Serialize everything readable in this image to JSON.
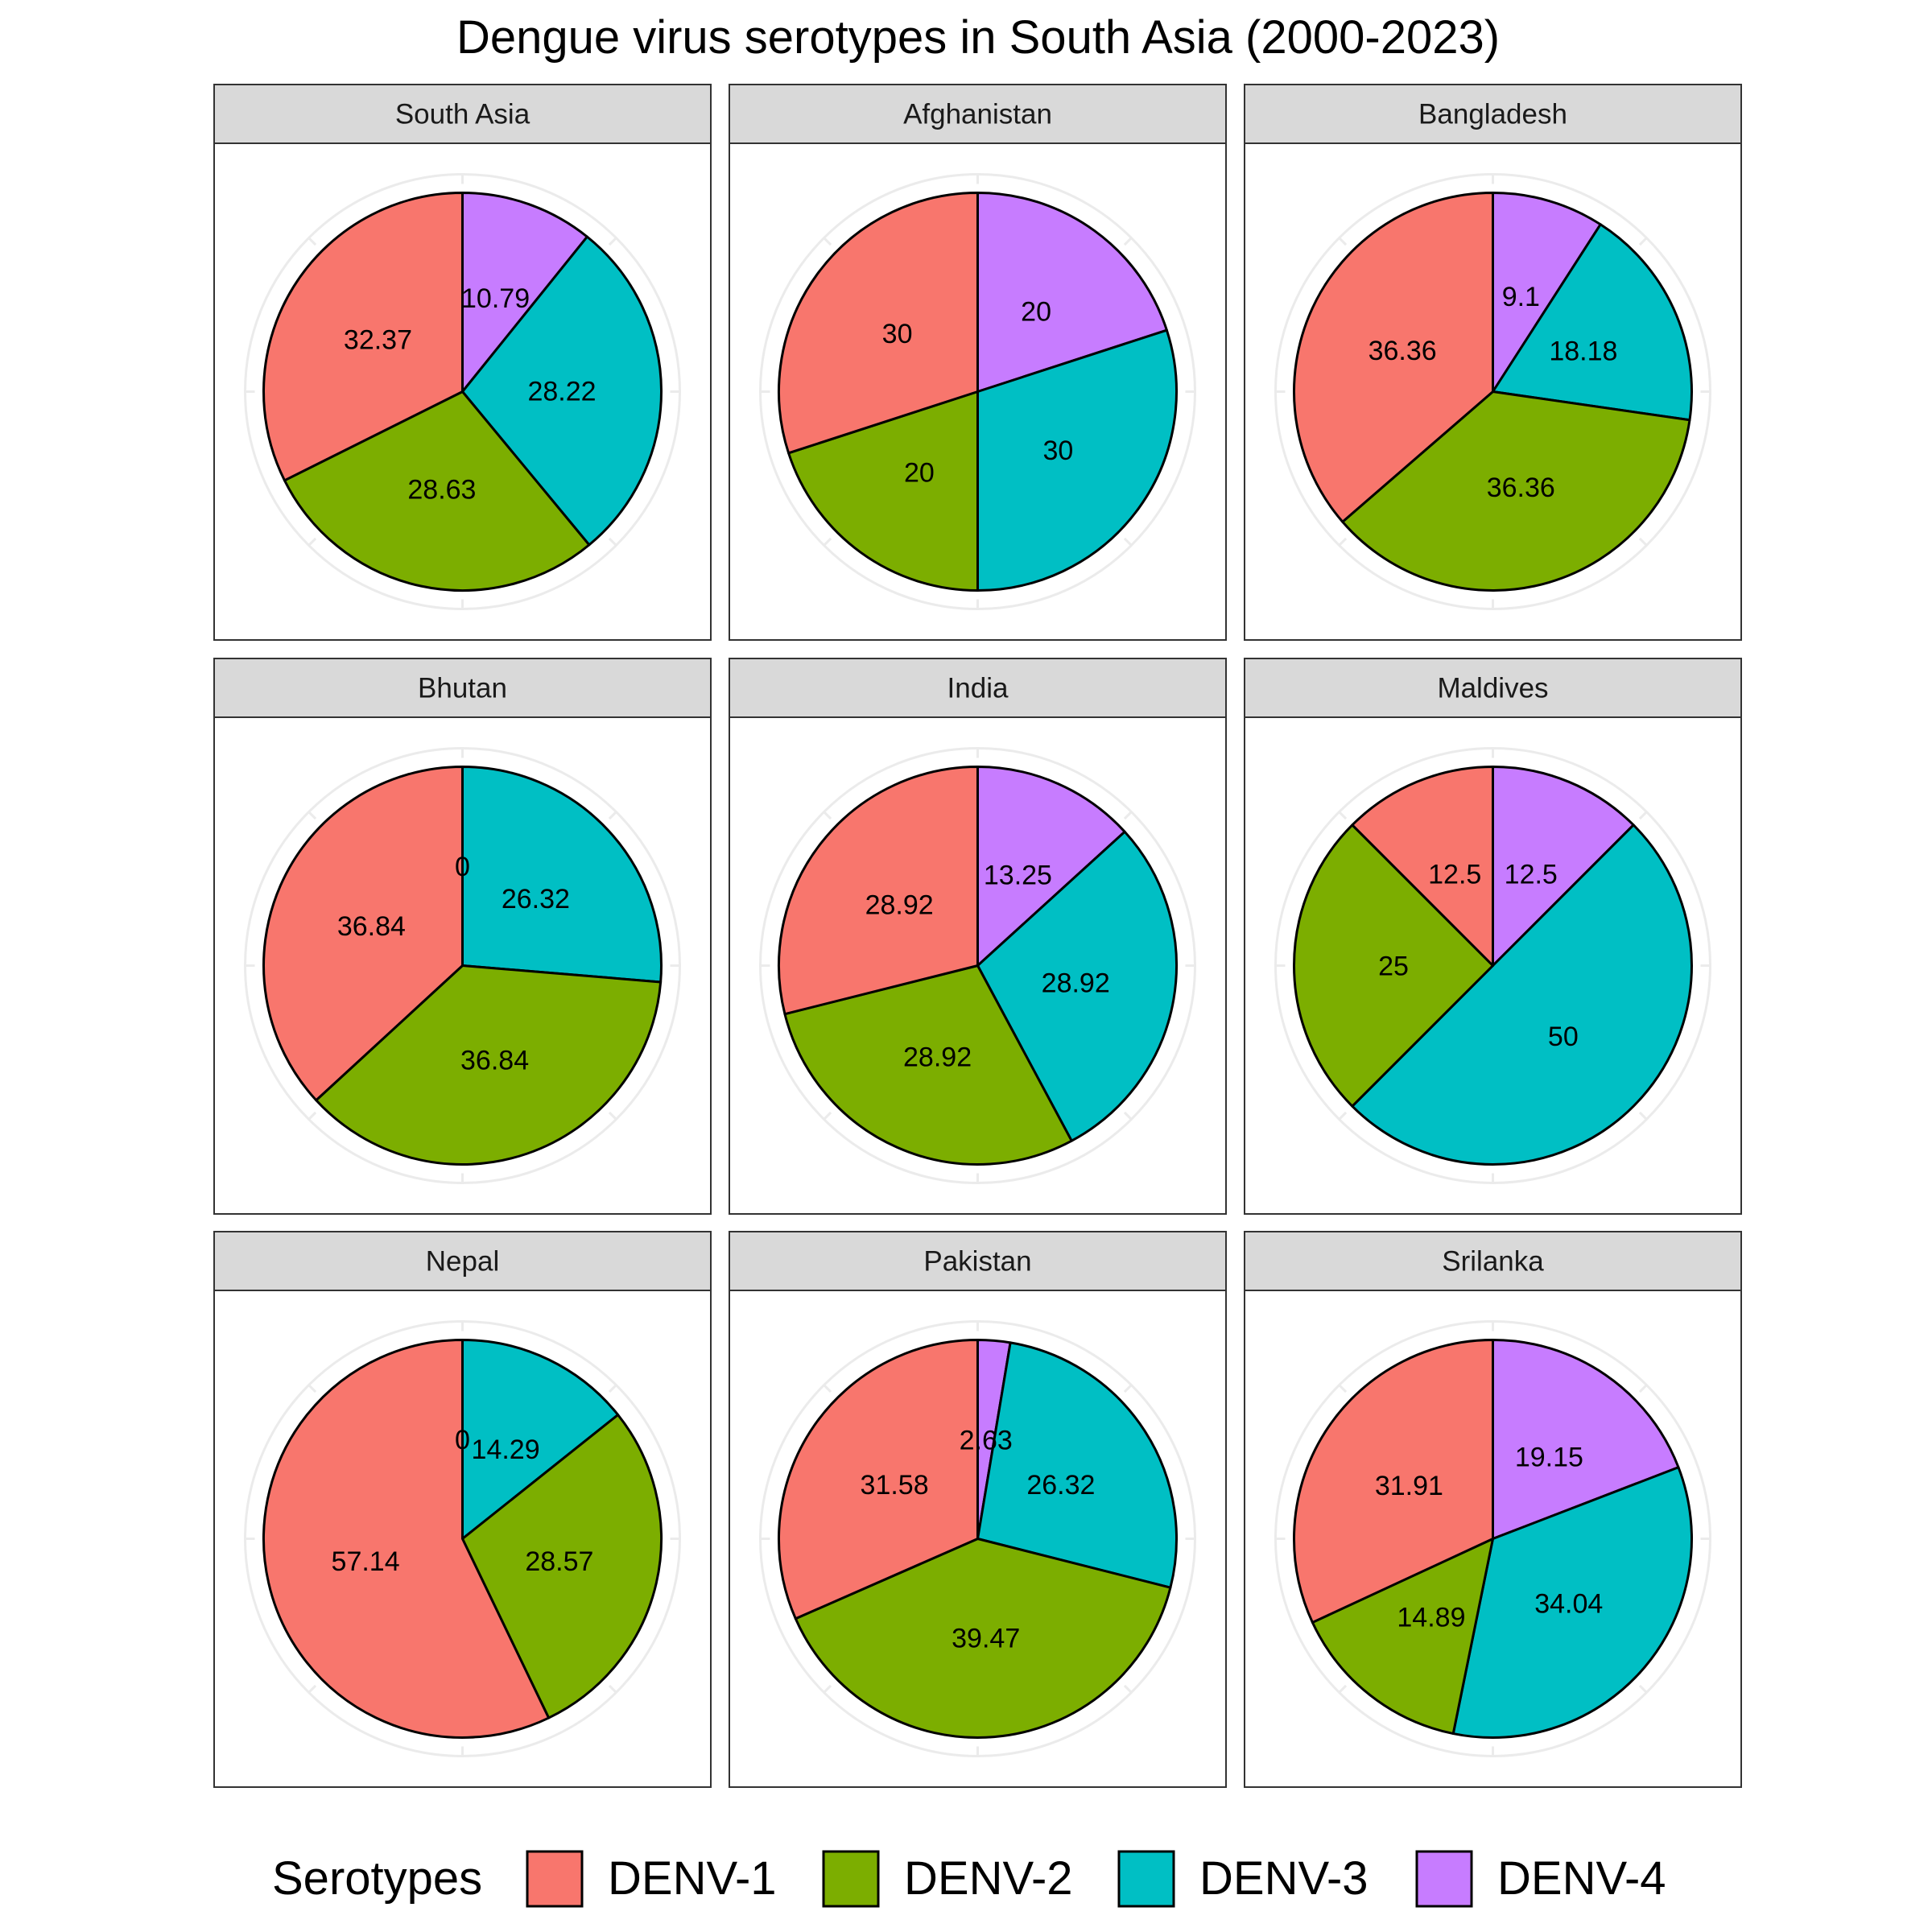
{
  "chart_data": {
    "type": "pie",
    "title": "Dengue virus serotypes in South Asia (2000-2023)",
    "legend": {
      "title": "Serotypes",
      "placement": "bottom",
      "entries": [
        {
          "name": "DENV-1",
          "color": "#F8766D"
        },
        {
          "name": "DENV-2",
          "color": "#7CAE00"
        },
        {
          "name": "DENV-3",
          "color": "#00BFC4"
        },
        {
          "name": "DENV-4",
          "color": "#C77CFF"
        }
      ]
    },
    "grid": true,
    "facets": [
      {
        "name": "South Asia",
        "values": [
          32.37,
          28.63,
          28.22,
          10.79
        ],
        "labels": [
          "32.37",
          "28.63",
          "28.22",
          "10.79"
        ]
      },
      {
        "name": "Afghanistan",
        "values": [
          30,
          20,
          30,
          20
        ],
        "labels": [
          "30",
          "20",
          "30",
          "20"
        ]
      },
      {
        "name": "Bangladesh",
        "values": [
          36.36,
          36.36,
          18.18,
          9.1
        ],
        "labels": [
          "36.36",
          "36.36",
          "18.18",
          "9.1"
        ]
      },
      {
        "name": "Bhutan",
        "values": [
          36.84,
          36.84,
          26.32,
          0
        ],
        "labels": [
          "36.84",
          "36.84",
          "26.32",
          "0"
        ]
      },
      {
        "name": "India",
        "values": [
          28.92,
          28.92,
          28.92,
          13.25
        ],
        "labels": [
          "28.92",
          "28.92",
          "28.92",
          "13.25"
        ]
      },
      {
        "name": "Maldives",
        "values": [
          12.5,
          25,
          50,
          12.5
        ],
        "labels": [
          "12.5",
          "25",
          "50",
          "12.5"
        ]
      },
      {
        "name": "Nepal",
        "values": [
          57.14,
          28.57,
          14.29,
          0
        ],
        "labels": [
          "57.14",
          "28.57",
          "14.29",
          "0"
        ]
      },
      {
        "name": "Pakistan",
        "values": [
          31.58,
          39.47,
          26.32,
          2.63
        ],
        "labels": [
          "31.58",
          "39.47",
          "26.32",
          "2.63"
        ]
      },
      {
        "name": "Srilanka",
        "values": [
          31.91,
          14.89,
          34.04,
          19.15
        ],
        "labels": [
          "31.91",
          "14.89",
          "34.04",
          "19.15"
        ]
      }
    ]
  }
}
